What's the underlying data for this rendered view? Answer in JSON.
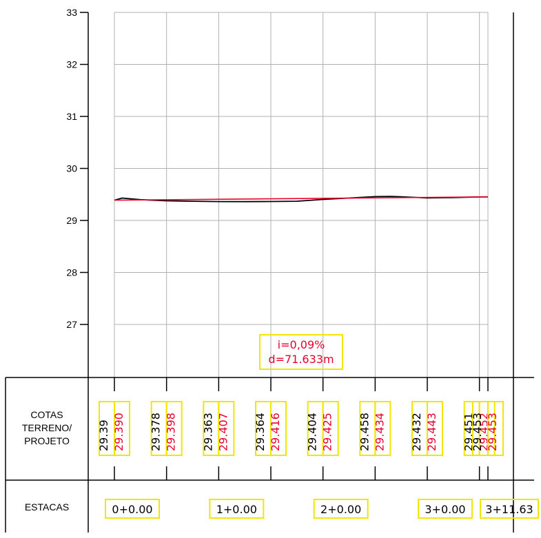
{
  "chart_data": {
    "type": "line",
    "title": "",
    "y_axis": {
      "ticks": [
        27,
        28,
        29,
        30,
        31,
        32,
        33
      ],
      "range": [
        26,
        33
      ]
    },
    "x_range_m": [
      0,
      71.63
    ],
    "grid": true,
    "series": [
      {
        "role": "terreno",
        "color": "#000000",
        "points": [
          [
            0,
            29.39
          ],
          [
            1.5,
            29.43
          ],
          [
            5,
            29.4
          ],
          [
            10,
            29.378
          ],
          [
            15,
            29.37
          ],
          [
            20,
            29.363
          ],
          [
            25,
            29.362
          ],
          [
            30,
            29.364
          ],
          [
            35,
            29.37
          ],
          [
            40,
            29.404
          ],
          [
            45,
            29.43
          ],
          [
            50,
            29.458
          ],
          [
            53,
            29.462
          ],
          [
            55,
            29.455
          ],
          [
            60,
            29.432
          ],
          [
            65,
            29.44
          ],
          [
            70,
            29.451
          ],
          [
            71.63,
            29.453
          ]
        ]
      },
      {
        "role": "projeto",
        "color": "#e8002a",
        "points": [
          [
            0,
            29.39
          ],
          [
            71.63,
            29.453
          ]
        ]
      }
    ],
    "annotation": {
      "lines": [
        "i=0,09%",
        "d=71.633m"
      ],
      "color": "#e8002a"
    }
  },
  "table": {
    "row_cotas_label_lines": [
      "COTAS",
      "TERRENO/",
      "PROJETO"
    ],
    "row_estacas_label": "ESTACAS",
    "elevations": [
      {
        "x_m": 0,
        "terreno": "29.39",
        "projeto": "29.390"
      },
      {
        "x_m": 10,
        "terreno": "29.378",
        "projeto": "29.398"
      },
      {
        "x_m": 20,
        "terreno": "29.363",
        "projeto": "29.407"
      },
      {
        "x_m": 30,
        "terreno": "29.364",
        "projeto": "29.416"
      },
      {
        "x_m": 40,
        "terreno": "29.404",
        "projeto": "29.425"
      },
      {
        "x_m": 50,
        "terreno": "29.458",
        "projeto": "29.434"
      },
      {
        "x_m": 60,
        "terreno": "29.432",
        "projeto": "29.443"
      },
      {
        "x_m": 70,
        "terreno": "29.451",
        "projeto": "29.452"
      },
      {
        "x_m": 71.63,
        "terreno": "29.453",
        "projeto": "29.453"
      }
    ],
    "stations": [
      {
        "x_m": 0,
        "label": "0+0.00"
      },
      {
        "x_m": 20,
        "label": "1+0.00"
      },
      {
        "x_m": 40,
        "label": "2+0.00"
      },
      {
        "x_m": 60,
        "label": "3+0.00"
      },
      {
        "x_m": 71.63,
        "label": "3+11.63"
      }
    ]
  },
  "colors": {
    "terreno": "#000000",
    "projeto": "#e8002a",
    "highlight_box": "#f2e600",
    "grid": "#b0b0b0"
  }
}
